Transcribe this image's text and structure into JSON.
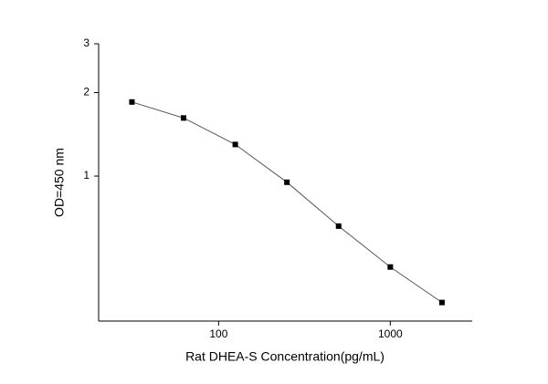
{
  "chart_data": {
    "type": "scatter",
    "x_label": "Rat DHEA-S Concentration(pg/mL)",
    "y_label": "OD=450 nm",
    "x": [
      31.25,
      62.5,
      125,
      250,
      500,
      1000,
      2000
    ],
    "series": [
      {
        "color": "#000000",
        "values": [
          1.85,
          1.62,
          1.3,
          0.95,
          0.66,
          0.47,
          0.35
        ]
      }
    ],
    "line_color": "#555555",
    "x_log": true,
    "y_log": true,
    "xlim": [
      20,
      3000
    ],
    "ylim": [
      0.3,
      3
    ],
    "xticks": [
      100,
      1000
    ],
    "yticks": [
      1,
      2,
      3
    ]
  }
}
